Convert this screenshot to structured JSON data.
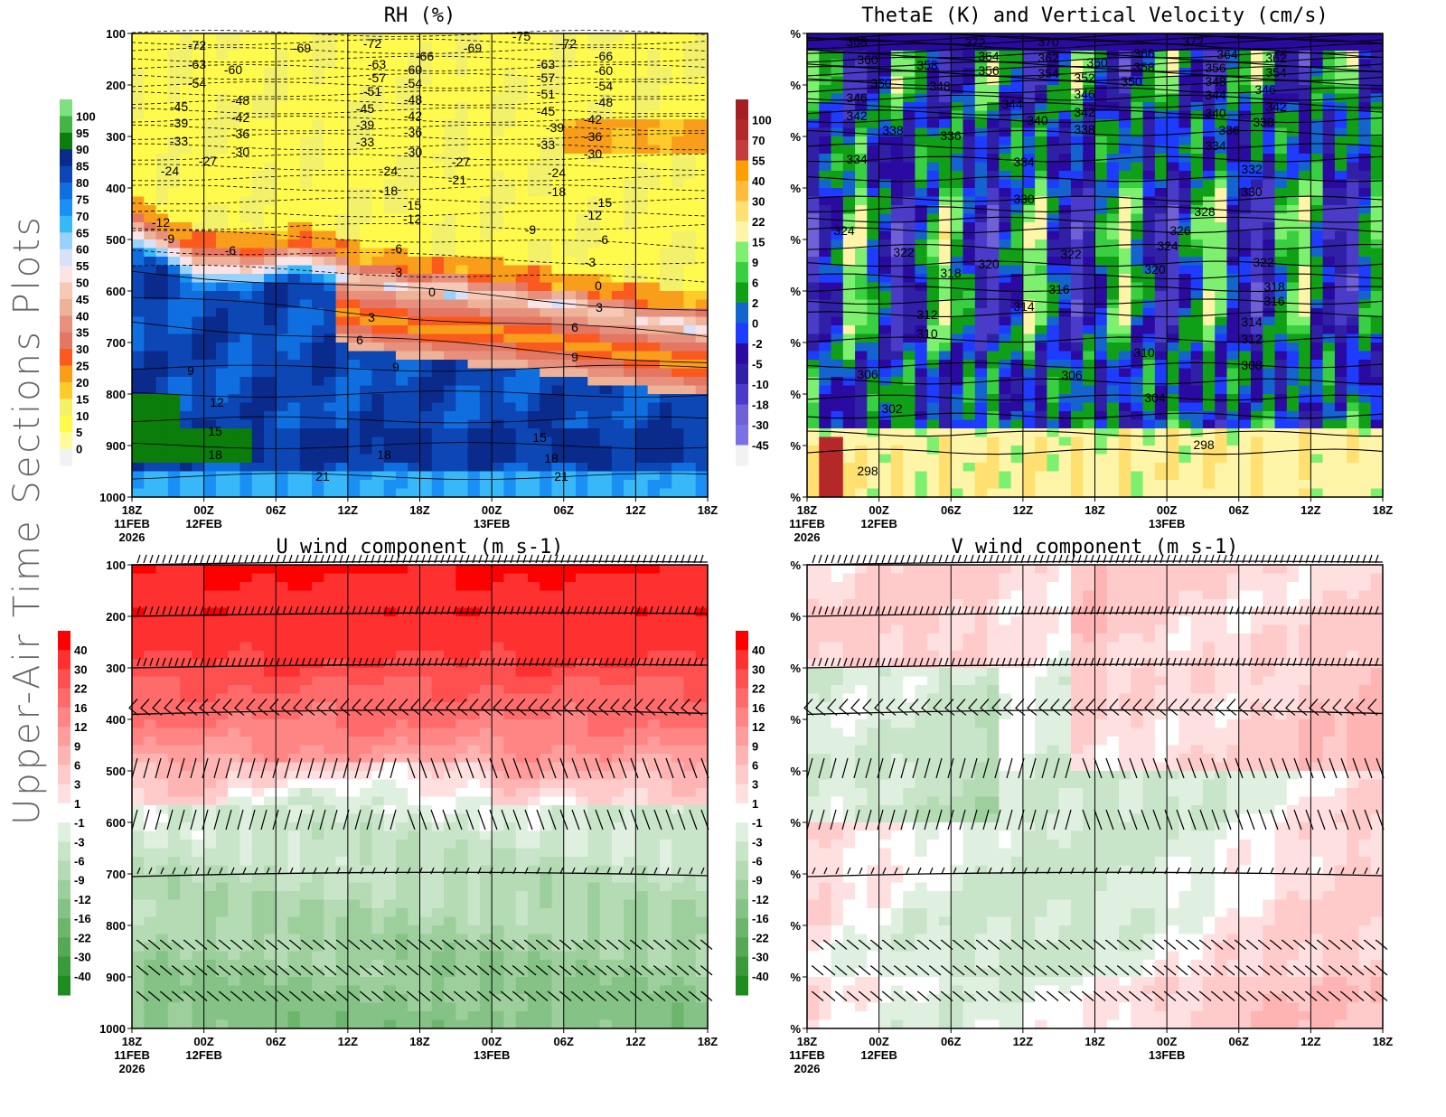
{
  "page_title": "Upper-Air Time Sections Plots",
  "chart_data": [
    {
      "type": "heatmap",
      "title": "RH (%)",
      "field": "relative humidity (shaded) with temperature contours",
      "y_ticks": [
        "100",
        "200",
        "300",
        "400",
        "500",
        "600",
        "700",
        "800",
        "900",
        "1000"
      ],
      "ylim": [
        1000,
        100
      ],
      "x_ticks": [
        {
          "time": "18Z",
          "date": "11FEB",
          "year": "2026"
        },
        {
          "time": "00Z",
          "date": "12FEB",
          "year": ""
        },
        {
          "time": "06Z",
          "date": "",
          "year": ""
        },
        {
          "time": "12Z",
          "date": "",
          "year": ""
        },
        {
          "time": "18Z",
          "date": "",
          "year": ""
        },
        {
          "time": "00Z",
          "date": "13FEB",
          "year": ""
        },
        {
          "time": "06Z",
          "date": "",
          "year": ""
        },
        {
          "time": "12Z",
          "date": "",
          "year": ""
        },
        {
          "time": "18Z",
          "date": "",
          "year": ""
        }
      ],
      "colorbar": {
        "labels": [
          "100",
          "95",
          "90",
          "85",
          "80",
          "75",
          "70",
          "65",
          "60",
          "55",
          "50",
          "45",
          "40",
          "35",
          "30",
          "25",
          "20",
          "15",
          "10",
          "5",
          "0"
        ],
        "colors": [
          "#7ee07e",
          "#44b544",
          "#0a7d0a",
          "#0a2a8c",
          "#0d47b5",
          "#0f6fe0",
          "#1a90f5",
          "#38b8f8",
          "#98d2fc",
          "#d8e0fa",
          "#fce4e6",
          "#f6c8b6",
          "#eeb299",
          "#e8907e",
          "#e47764",
          "#fb5a1e",
          "#f99e1a",
          "#fdcc2a",
          "#f3f06a",
          "#fffa4c",
          "#fffb9a",
          "#f2f2f2"
        ]
      },
      "contour_labels": [
        "-72",
        "-69",
        "-72",
        "-66",
        "-69",
        "-75",
        "-72",
        "-66",
        "-63",
        "-60",
        "-63",
        "-60",
        "-63",
        "-60",
        "-54",
        "-48",
        "-57",
        "-54",
        "-57",
        "-54",
        "-51",
        "-48",
        "-51",
        "-48",
        "-45",
        "-42",
        "-45",
        "-42",
        "-45",
        "-42",
        "-39",
        "-36",
        "-39",
        "-36",
        "-39",
        "-36",
        "-33",
        "-30",
        "-33",
        "-30",
        "-33",
        "-30",
        "-27",
        "-24",
        "-27",
        "-24",
        "-21",
        "-24",
        "-18",
        "-18",
        "-15",
        "-15",
        "-12",
        "-12",
        "-12",
        "-9",
        "-9",
        "-6",
        "-6",
        "-6",
        "-3",
        "-3",
        "0",
        "0",
        "3",
        "3",
        "6",
        "6",
        "9",
        "9",
        "9",
        "12",
        "15",
        "15",
        "18",
        "18",
        "18",
        "21",
        "21"
      ]
    },
    {
      "type": "heatmap",
      "title": "ThetaE (K) and Vertical Velocity (cm/s)",
      "field": "vertical velocity (shaded) with equivalent potential temperature contours",
      "y_ticks": [
        "%",
        "%",
        "%",
        "%",
        "%",
        "%",
        "%",
        "%",
        "%",
        "%"
      ],
      "ylim": [
        1000,
        100
      ],
      "x_ticks": [
        {
          "time": "18Z",
          "date": "11FEB",
          "year": "2026"
        },
        {
          "time": "00Z",
          "date": "12FEB",
          "year": ""
        },
        {
          "time": "06Z",
          "date": "",
          "year": ""
        },
        {
          "time": "12Z",
          "date": "",
          "year": ""
        },
        {
          "time": "18Z",
          "date": "",
          "year": ""
        },
        {
          "time": "00Z",
          "date": "13FEB",
          "year": ""
        },
        {
          "time": "06Z",
          "date": "",
          "year": ""
        },
        {
          "time": "12Z",
          "date": "",
          "year": ""
        },
        {
          "time": "18Z",
          "date": "",
          "year": ""
        }
      ],
      "colorbar": {
        "labels": [
          "100",
          "70",
          "55",
          "40",
          "30",
          "22",
          "15",
          "9",
          "6",
          "2",
          "0",
          "-2",
          "-5",
          "-10",
          "-18",
          "-30",
          "-45"
        ],
        "colors": [
          "#a51f22",
          "#b5282a",
          "#c63c3c",
          "#ff9e00",
          "#ffbb3b",
          "#ffe070",
          "#fff5a8",
          "#7ef070",
          "#38d040",
          "#10a018",
          "#1464d0",
          "#1e3cff",
          "#2a0aa0",
          "#3020a8",
          "#4a3cc8",
          "#7060d8",
          "#7c70e6",
          "#f2f2f2"
        ]
      },
      "contour_labels": [
        "368",
        "372",
        "370",
        "372",
        "360",
        "364",
        "362",
        "366",
        "364",
        "362",
        "358",
        "356",
        "354",
        "352",
        "360",
        "358",
        "356",
        "354",
        "350",
        "348",
        "350",
        "348",
        "346",
        "346",
        "344",
        "346",
        "344",
        "342",
        "342",
        "340",
        "342",
        "340",
        "338",
        "336",
        "338",
        "338",
        "336",
        "334",
        "334",
        "334",
        "332",
        "330",
        "330",
        "328",
        "324",
        "326",
        "324",
        "322",
        "322",
        "322",
        "318",
        "320",
        "320",
        "318",
        "316",
        "316",
        "314",
        "312",
        "314",
        "310",
        "312",
        "310",
        "308",
        "306",
        "306",
        "304",
        "302",
        "298",
        "298"
      ]
    },
    {
      "type": "heatmap",
      "title": "U wind component (m s-1)",
      "field": "zonal wind (shaded) with wind barbs",
      "y_ticks": [
        "100",
        "200",
        "300",
        "400",
        "500",
        "600",
        "700",
        "800",
        "900",
        "1000"
      ],
      "ylim": [
        1000,
        100
      ],
      "x_ticks": [
        {
          "time": "18Z",
          "date": "11FEB",
          "year": "2026"
        },
        {
          "time": "00Z",
          "date": "12FEB",
          "year": ""
        },
        {
          "time": "06Z",
          "date": "",
          "year": ""
        },
        {
          "time": "12Z",
          "date": "",
          "year": ""
        },
        {
          "time": "18Z",
          "date": "",
          "year": ""
        },
        {
          "time": "00Z",
          "date": "13FEB",
          "year": ""
        },
        {
          "time": "06Z",
          "date": "",
          "year": ""
        },
        {
          "time": "12Z",
          "date": "",
          "year": ""
        },
        {
          "time": "18Z",
          "date": "",
          "year": ""
        }
      ],
      "colorbar": {
        "labels": [
          "40",
          "30",
          "22",
          "16",
          "12",
          "9",
          "6",
          "3",
          "1",
          "-1",
          "-3",
          "-6",
          "-9",
          "-12",
          "-16",
          "-22",
          "-30",
          "-40"
        ],
        "colors": [
          "#ff0000",
          "#ff3030",
          "#ff5050",
          "#ff6a6a",
          "#ff8484",
          "#ff9c9c",
          "#ffb4b4",
          "#ffcaca",
          "#ffe0e0",
          "#ffffff",
          "#e0f0e0",
          "#c9e5c9",
          "#b4dbb4",
          "#9dcf9d",
          "#85c285",
          "#6db56d",
          "#55a855",
          "#3a9a3a",
          "#1e8c1e"
        ]
      }
    },
    {
      "type": "heatmap",
      "title": "V wind component (m s-1)",
      "field": "meridional wind (shaded) with wind barbs",
      "y_ticks": [
        "%",
        "%",
        "%",
        "%",
        "%",
        "%",
        "%",
        "%",
        "%",
        "%"
      ],
      "ylim": [
        1000,
        100
      ],
      "x_ticks": [
        {
          "time": "18Z",
          "date": "11FEB",
          "year": "2026"
        },
        {
          "time": "00Z",
          "date": "12FEB",
          "year": ""
        },
        {
          "time": "06Z",
          "date": "",
          "year": ""
        },
        {
          "time": "12Z",
          "date": "",
          "year": ""
        },
        {
          "time": "18Z",
          "date": "",
          "year": ""
        },
        {
          "time": "00Z",
          "date": "13FEB",
          "year": ""
        },
        {
          "time": "06Z",
          "date": "",
          "year": ""
        },
        {
          "time": "12Z",
          "date": "",
          "year": ""
        },
        {
          "time": "18Z",
          "date": "",
          "year": ""
        }
      ],
      "colorbar": {
        "labels": [
          "40",
          "30",
          "22",
          "16",
          "12",
          "9",
          "6",
          "3",
          "1",
          "-1",
          "-3",
          "-6",
          "-9",
          "-12",
          "-16",
          "-22",
          "-30",
          "-40"
        ],
        "colors": [
          "#ff0000",
          "#ff3030",
          "#ff5050",
          "#ff6a6a",
          "#ff8484",
          "#ff9c9c",
          "#ffb4b4",
          "#ffcaca",
          "#ffe0e0",
          "#ffffff",
          "#e0f0e0",
          "#c9e5c9",
          "#b4dbb4",
          "#9dcf9d",
          "#85c285",
          "#6db56d",
          "#55a855",
          "#3a9a3a",
          "#1e8c1e"
        ]
      }
    }
  ]
}
